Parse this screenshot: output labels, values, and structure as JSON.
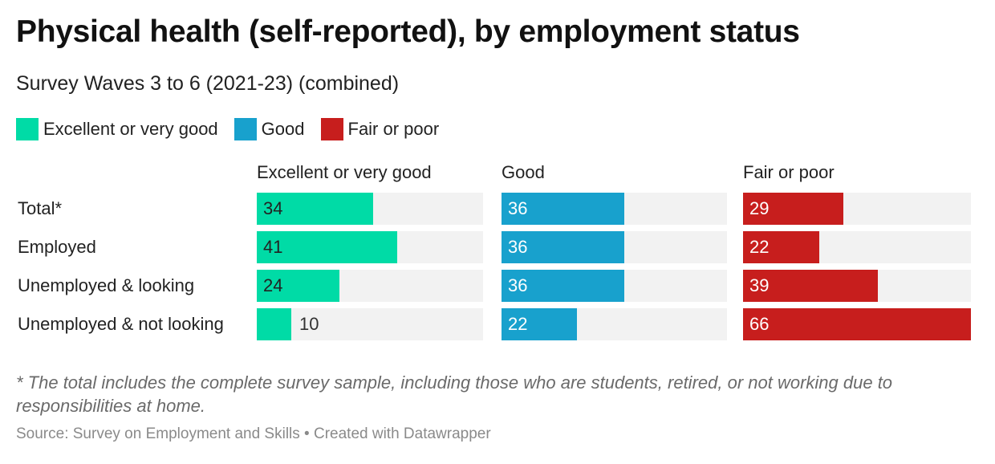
{
  "title": "Physical health (self-reported), by employment status",
  "subtitle": "Survey Waves 3 to 6 (2021-23) (combined)",
  "legend": [
    {
      "label": "Excellent or very good",
      "color": "#00dba6"
    },
    {
      "label": "Good",
      "color": "#18a1cd"
    },
    {
      "label": "Fair or poor",
      "color": "#c71e1d"
    }
  ],
  "chart_data": {
    "type": "bar",
    "orientation": "horizontal",
    "layout": "split-bars",
    "categories": [
      "Total*",
      "Employed",
      "Unemployed & looking",
      "Unemployed & not looking"
    ],
    "series": [
      {
        "name": "Excellent or very good",
        "color": "#00dba6",
        "values": [
          34,
          41,
          24,
          10
        ]
      },
      {
        "name": "Good",
        "color": "#18a1cd",
        "values": [
          36,
          36,
          36,
          22
        ]
      },
      {
        "name": "Fair or poor",
        "color": "#c71e1d",
        "values": [
          29,
          22,
          39,
          66
        ]
      }
    ],
    "xlim": [
      0,
      66
    ],
    "grid": false,
    "legend_position": "top-left"
  },
  "footnote": "* The total includes the complete survey sample, including those who are students, retired, or not working due to responsibilities at home.",
  "source": "Source: Survey on Employment and Skills • Created with Datawrapper"
}
